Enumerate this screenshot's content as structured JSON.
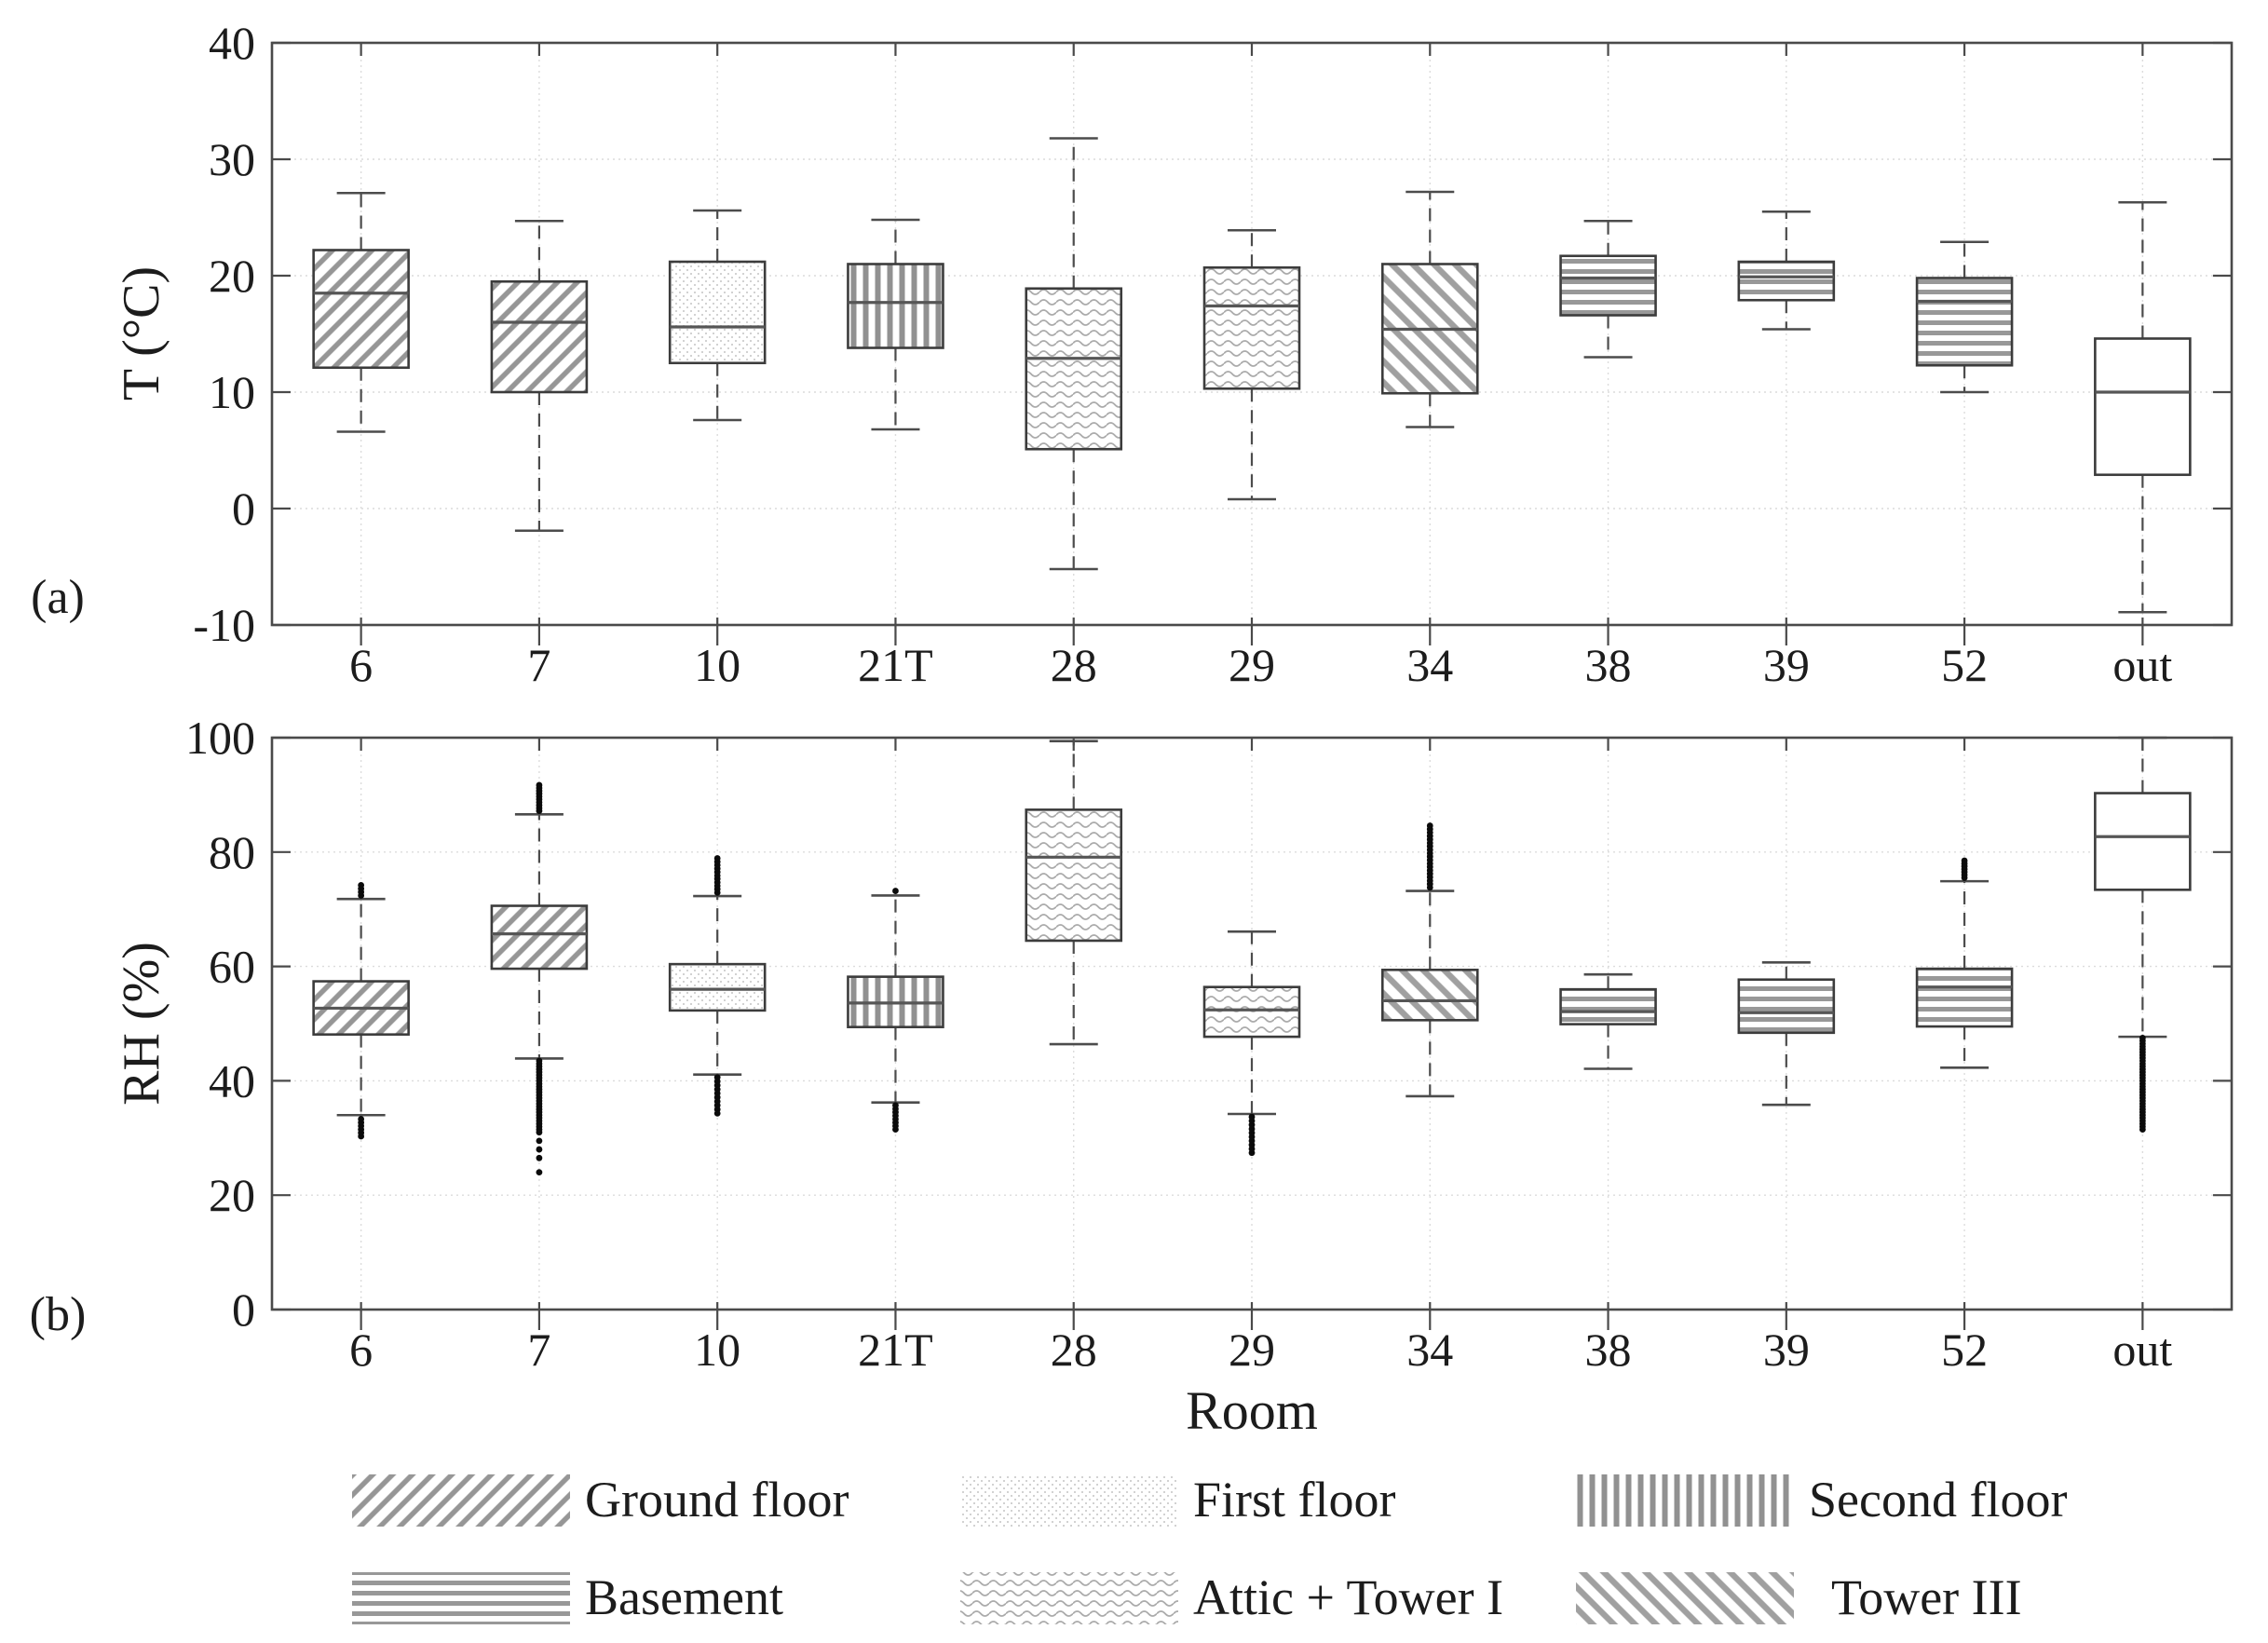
{
  "xlabel": "Room",
  "colors": {
    "text": "#1c1c1c",
    "frame": "#4a4a4a",
    "hatch_gray": "#969696",
    "stipple_gray": "#d2d2d2",
    "wave_gray": "#ababab",
    "median_gray": "#565656",
    "whisker_gray": "#4c4c4c",
    "outlier_black": "#0b0b0b",
    "grid_gray": "#dcdcdc",
    "background": "#ffffff"
  },
  "legend": {
    "items": [
      {
        "label": "Ground floor",
        "pattern": "ground"
      },
      {
        "label": "First floor",
        "pattern": "first"
      },
      {
        "label": "Second floor",
        "pattern": "second"
      },
      {
        "label": "Basement",
        "pattern": "basement"
      },
      {
        "label": "Attic + Tower I",
        "pattern": "attic"
      },
      {
        "label": "Tower III",
        "pattern": "tower3"
      }
    ]
  },
  "chart_data": [
    {
      "type": "boxplot",
      "panel_label": "(a)",
      "ylabel": "T (°C)",
      "ylim": [
        -10,
        40
      ],
      "yticks": [
        -10,
        0,
        10,
        20,
        30,
        40
      ],
      "grid": "dotted",
      "legend_position": "below-figure",
      "categories": [
        "6",
        "7",
        "10",
        "21T",
        "28",
        "29",
        "34",
        "38",
        "39",
        "52",
        "out"
      ],
      "boxes": [
        {
          "room": "6",
          "floor": "ground",
          "whislo": 6.6,
          "q1": 12.1,
          "med": 18.5,
          "q3": 22.2,
          "whishi": 27.1,
          "outliers_low": [],
          "outliers_high": []
        },
        {
          "room": "7",
          "floor": "ground",
          "whislo": -1.9,
          "q1": 10.0,
          "med": 16.0,
          "q3": 19.5,
          "whishi": 24.7,
          "outliers_low": [],
          "outliers_high": []
        },
        {
          "room": "10",
          "floor": "first",
          "whislo": 7.6,
          "q1": 12.5,
          "med": 15.6,
          "q3": 21.2,
          "whishi": 25.6,
          "outliers_low": [],
          "outliers_high": []
        },
        {
          "room": "21T",
          "floor": "second",
          "whislo": 6.8,
          "q1": 13.8,
          "med": 17.7,
          "q3": 21.0,
          "whishi": 24.8,
          "outliers_low": [],
          "outliers_high": []
        },
        {
          "room": "28",
          "floor": "attic",
          "whislo": -5.2,
          "q1": 5.1,
          "med": 12.9,
          "q3": 18.9,
          "whishi": 31.8,
          "outliers_low": [],
          "outliers_high": []
        },
        {
          "room": "29",
          "floor": "attic",
          "whislo": 0.8,
          "q1": 10.3,
          "med": 17.4,
          "q3": 20.7,
          "whishi": 23.9,
          "outliers_low": [],
          "outliers_high": []
        },
        {
          "room": "34",
          "floor": "tower3",
          "whislo": 7.0,
          "q1": 9.9,
          "med": 15.4,
          "q3": 21.0,
          "whishi": 27.2,
          "outliers_low": [],
          "outliers_high": []
        },
        {
          "room": "38",
          "floor": "basement",
          "whislo": 13.0,
          "q1": 16.6,
          "med": 19.8,
          "q3": 21.7,
          "whishi": 24.7,
          "outliers_low": [],
          "outliers_high": []
        },
        {
          "room": "39",
          "floor": "basement",
          "whislo": 15.4,
          "q1": 17.9,
          "med": 19.9,
          "q3": 21.2,
          "whishi": 25.5,
          "outliers_low": [],
          "outliers_high": []
        },
        {
          "room": "52",
          "floor": "basement",
          "whislo": 10.0,
          "q1": 12.3,
          "med": 17.8,
          "q3": 19.8,
          "whishi": 22.9,
          "outliers_low": [],
          "outliers_high": []
        },
        {
          "room": "out",
          "floor": "outdoor",
          "whislo": -8.9,
          "q1": 2.9,
          "med": 10.0,
          "q3": 14.6,
          "whishi": 26.3,
          "outliers_low": [],
          "outliers_high": []
        }
      ]
    },
    {
      "type": "boxplot",
      "panel_label": "(b)",
      "ylabel": "RH (%)",
      "ylim": [
        0,
        100
      ],
      "yticks": [
        0,
        20,
        40,
        60,
        80,
        100
      ],
      "grid": "dotted",
      "xlabel": "Room",
      "categories": [
        "6",
        "7",
        "10",
        "21T",
        "28",
        "29",
        "34",
        "38",
        "39",
        "52",
        "out"
      ],
      "boxes": [
        {
          "room": "6",
          "floor": "ground",
          "whislo": 34.0,
          "q1": 48.1,
          "med": 52.7,
          "q3": 57.4,
          "whishi": 71.8,
          "outliers_low": [
            30.3,
            30.9,
            31.5,
            32.1,
            32.7,
            33.3
          ],
          "outliers_high": [
            72.4,
            73.0,
            73.6,
            74.2
          ]
        },
        {
          "room": "7",
          "floor": "ground",
          "whislo": 43.9,
          "q1": 59.6,
          "med": 65.7,
          "q3": 70.6,
          "whishi": 86.6,
          "outliers_low": [
            24.0,
            26.5,
            28.0,
            29.5,
            31.0,
            31.5,
            32.0,
            32.5,
            33.0,
            33.5,
            34.0,
            34.5,
            35.0,
            35.5,
            36.0,
            36.5,
            37.0,
            37.5,
            38.0,
            38.5,
            39.0,
            39.5,
            40.0,
            40.5,
            41.0,
            41.5,
            42.0,
            42.5,
            43.0,
            43.5
          ],
          "outliers_high": [
            87.2,
            87.7,
            88.2,
            88.7,
            89.2,
            89.7,
            90.2,
            90.7,
            91.2,
            91.7
          ]
        },
        {
          "room": "10",
          "floor": "first",
          "whislo": 41.1,
          "q1": 52.3,
          "med": 56.0,
          "q3": 60.4,
          "whishi": 72.3,
          "outliers_low": [
            34.3,
            35.0,
            35.7,
            36.4,
            37.1,
            37.8,
            38.5,
            39.2,
            39.9,
            40.6
          ],
          "outliers_high": [
            72.9,
            73.5,
            74.1,
            74.7,
            75.3,
            75.9,
            76.5,
            77.1,
            77.7,
            78.3,
            78.9
          ]
        },
        {
          "room": "21T",
          "floor": "second",
          "whislo": 36.2,
          "q1": 49.4,
          "med": 53.6,
          "q3": 58.2,
          "whishi": 72.4,
          "outliers_low": [
            31.5,
            32.1,
            32.7,
            33.3,
            33.9,
            34.5,
            35.1,
            35.7
          ],
          "outliers_high": [
            73.2
          ]
        },
        {
          "room": "28",
          "floor": "attic",
          "whislo": 46.4,
          "q1": 64.5,
          "med": 79.1,
          "q3": 87.4,
          "whishi": 99.4,
          "outliers_low": [],
          "outliers_high": []
        },
        {
          "room": "29",
          "floor": "attic",
          "whislo": 34.2,
          "q1": 47.7,
          "med": 52.4,
          "q3": 56.4,
          "whishi": 66.1,
          "outliers_low": [
            27.4,
            28.1,
            28.8,
            29.5,
            30.2,
            30.9,
            31.6,
            32.3,
            33.0,
            33.7
          ],
          "outliers_high": []
        },
        {
          "room": "34",
          "floor": "tower3",
          "whislo": 37.3,
          "q1": 50.6,
          "med": 54.0,
          "q3": 59.4,
          "whishi": 73.2,
          "outliers_low": [],
          "outliers_high": [
            73.8,
            74.4,
            75.0,
            75.6,
            76.2,
            76.8,
            77.4,
            78.0,
            78.6,
            79.2,
            79.8,
            80.4,
            81.0,
            81.6,
            82.2,
            82.8,
            83.4,
            84.0,
            84.6
          ]
        },
        {
          "room": "38",
          "floor": "basement",
          "whislo": 42.1,
          "q1": 49.9,
          "med": 52.1,
          "q3": 56.0,
          "whishi": 58.6,
          "outliers_low": [],
          "outliers_high": []
        },
        {
          "room": "39",
          "floor": "basement",
          "whislo": 35.8,
          "q1": 48.4,
          "med": 51.9,
          "q3": 57.7,
          "whishi": 60.7,
          "outliers_low": [],
          "outliers_high": []
        },
        {
          "room": "52",
          "floor": "basement",
          "whislo": 42.3,
          "q1": 49.5,
          "med": 56.4,
          "q3": 59.6,
          "whishi": 74.9,
          "outliers_low": [],
          "outliers_high": [
            75.5,
            76.0,
            76.5,
            77.0,
            77.5,
            78.0,
            78.5
          ]
        },
        {
          "room": "out",
          "floor": "outdoor",
          "whislo": 47.7,
          "q1": 73.4,
          "med": 82.7,
          "q3": 90.3,
          "whishi": 100,
          "outliers_low": [
            31.5,
            32.0,
            32.5,
            33.0,
            33.5,
            34.0,
            34.5,
            35.0,
            35.5,
            36.0,
            36.5,
            37.0,
            37.5,
            38.0,
            38.5,
            39.0,
            39.5,
            40.0,
            40.5,
            41.0,
            41.5,
            42.0,
            42.5,
            43.0,
            43.5,
            44.0,
            44.5,
            45.0,
            45.5,
            46.0,
            46.5,
            47.0,
            47.5
          ],
          "outliers_high": []
        }
      ]
    }
  ]
}
